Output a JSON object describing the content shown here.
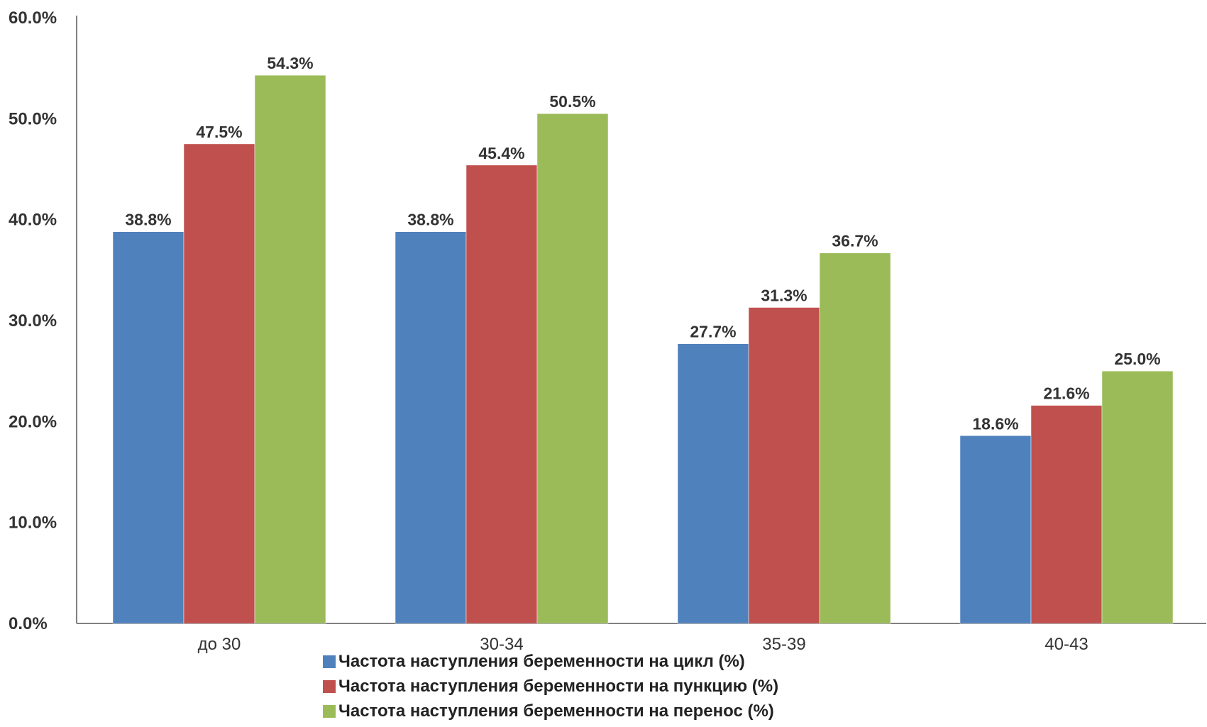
{
  "chart_data": {
    "type": "bar",
    "categories": [
      "до 30",
      "30-34",
      "35-39",
      "40-43"
    ],
    "series": [
      {
        "name": "Частота наступления беременности на цикл (%)",
        "values": [
          38.8,
          38.8,
          27.7,
          18.6
        ],
        "color": "#4f81bd"
      },
      {
        "name": "Частота наступления беременности на пункцию (%)",
        "values": [
          47.5,
          45.4,
          31.3,
          21.6
        ],
        "color": "#c0504d"
      },
      {
        "name": "Частота наступления беременности на перенос (%)",
        "values": [
          54.3,
          50.5,
          36.7,
          25.0
        ],
        "color": "#9bbb59"
      }
    ],
    "data_labels": [
      [
        "38.8%",
        "38.8%",
        "27.7%",
        "18.6%"
      ],
      [
        "47.5%",
        "45.4%",
        "31.3%",
        "21.6%"
      ],
      [
        "54.3%",
        "50.5%",
        "36.7%",
        "25.0%"
      ]
    ],
    "y_ticks": [
      "0.0%",
      "10.0%",
      "20.0%",
      "30.0%",
      "40.0%",
      "50.0%",
      "60.0%"
    ],
    "title": "",
    "xlabel": "",
    "ylabel": "",
    "ylim": [
      0,
      60
    ],
    "grid": false,
    "legend_position": "bottom"
  }
}
